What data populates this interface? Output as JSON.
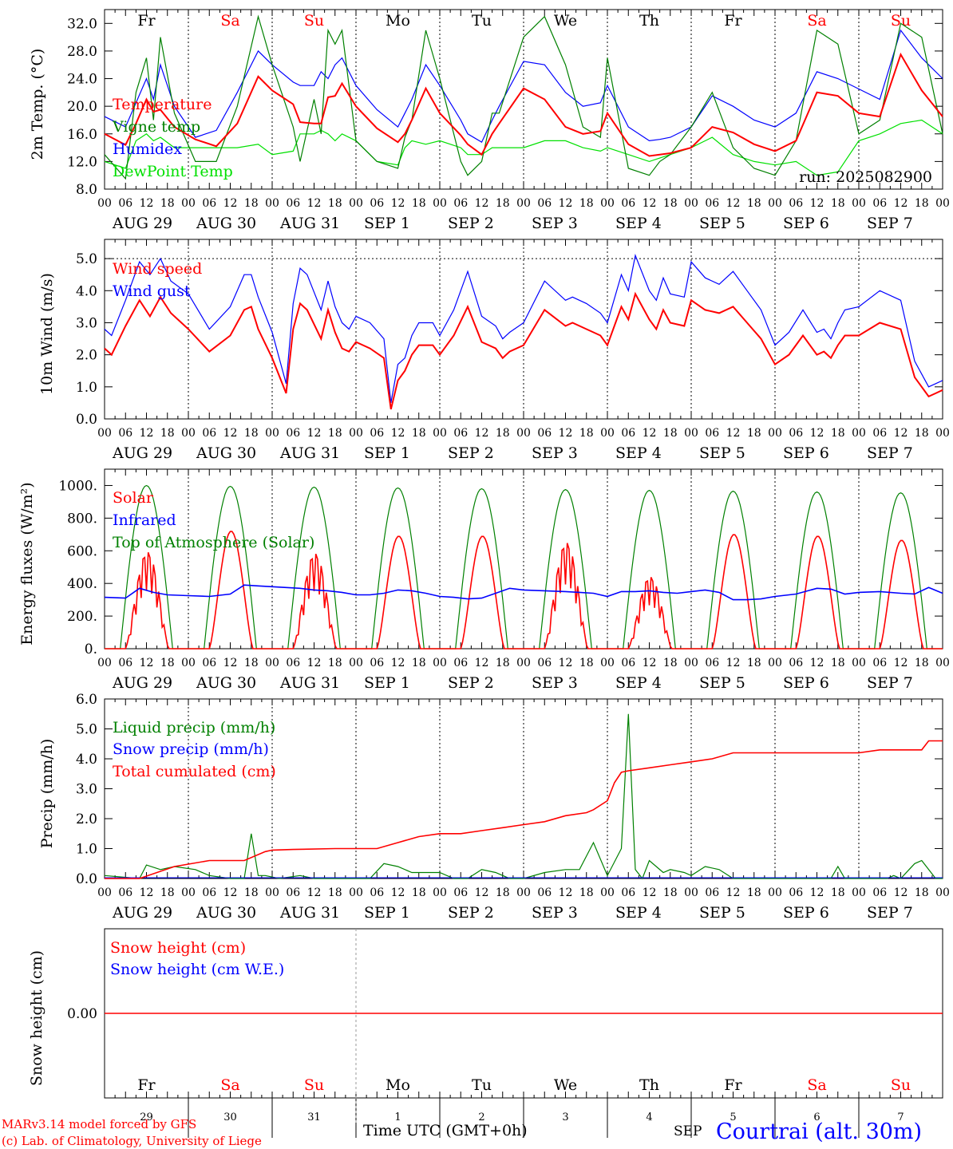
{
  "days": {
    "weekday": [
      "Fr",
      "Sa",
      "Su",
      "Mo",
      "Tu",
      "We",
      "Th",
      "Fr",
      "Sa",
      "Su"
    ],
    "weekend": [
      false,
      true,
      true,
      false,
      false,
      false,
      false,
      false,
      true,
      true
    ],
    "dates": [
      "AUG 29",
      "AUG 30",
      "AUG 31",
      "SEP  1",
      "SEP  2",
      "SEP  3",
      "SEP  4",
      "SEP  5",
      "SEP  6",
      "SEP  7"
    ],
    "day_numbers": [
      "29",
      "30",
      "31",
      "1",
      "2",
      "3",
      "4",
      "5",
      "6",
      "7"
    ],
    "hour_ticks": [
      "00",
      "06",
      "12",
      "18"
    ],
    "final_hour": "00"
  },
  "colors": {
    "red": "#ff0000",
    "blue": "#0000ff",
    "green": "#008000",
    "lightgreen": "#00e000",
    "black": "#000000",
    "gray": "#555555"
  },
  "footer": {
    "credit_line1": "MARv3.14 model forced by GFS",
    "credit_line2": "(c) Lab. of Climatology, University of Liege",
    "time_axis_label": "Time UTC (GMT+0h)",
    "month": "SEP",
    "station": "Courtrai (alt. 30m)"
  },
  "chart_data": [
    {
      "type": "line",
      "ylabel": "2m Temp. (°C)",
      "ylim": [
        8,
        34
      ],
      "yticks": [
        "8.0",
        "12.0",
        "16.0",
        "20.0",
        "24.0",
        "28.0",
        "32.0"
      ],
      "annotation": "run: 2025082900",
      "hours": [
        0,
        6,
        9,
        12,
        14,
        16,
        20,
        26,
        32,
        38,
        44,
        48,
        54,
        56,
        60,
        62,
        64,
        66,
        68,
        72,
        78,
        84,
        86,
        88,
        92,
        96,
        102,
        104,
        108,
        111,
        113,
        120,
        126,
        132,
        137,
        142,
        144,
        150,
        156,
        159,
        162,
        168,
        174,
        180,
        186,
        192,
        198,
        204,
        210,
        216,
        222,
        228,
        234,
        240
      ],
      "series": [
        {
          "name": "Temperature",
          "color_key": "red",
          "values": [
            16,
            14.4,
            17.5,
            21,
            19.2,
            19.5,
            17,
            15.2,
            14.2,
            17.5,
            24.3,
            22.3,
            20.3,
            17.7,
            17.5,
            17.5,
            21.3,
            21.5,
            23.3,
            20,
            16.8,
            14.8,
            16,
            18,
            22.6,
            19,
            15.8,
            14.5,
            13,
            16,
            17.5,
            22.6,
            21,
            17,
            16,
            16.4,
            19,
            14.5,
            12.8,
            13,
            13.2,
            14,
            17,
            16.2,
            14.5,
            13.5,
            15,
            22,
            21.5,
            19,
            18.5,
            27.5,
            22.3,
            18.5
          ]
        },
        {
          "name": "Vigne temp",
          "color_key": "green",
          "values": [
            13,
            9.5,
            22,
            27,
            18,
            30,
            19,
            12,
            12,
            20,
            33,
            26,
            17,
            12,
            21,
            16,
            31,
            29,
            31,
            15,
            12,
            11,
            15.5,
            18,
            31,
            24,
            12,
            10,
            12,
            19,
            19,
            30,
            33,
            26,
            17,
            15.5,
            27,
            11,
            10,
            12,
            13,
            17,
            22,
            14,
            11,
            10,
            15,
            31,
            29,
            16,
            18,
            32,
            30,
            16
          ]
        },
        {
          "name": "Humidex",
          "color_key": "blue",
          "values": [
            18.5,
            17,
            20.5,
            24,
            21,
            26,
            20,
            15.5,
            16.5,
            22,
            28,
            26,
            23.5,
            23,
            23,
            25,
            24,
            26,
            27,
            23,
            19.5,
            17,
            19,
            21,
            26,
            23,
            18,
            16,
            14.8,
            18,
            20,
            26.5,
            26,
            22,
            20,
            20.5,
            23,
            17,
            15,
            15.2,
            15.5,
            17,
            21.5,
            20,
            18,
            17,
            19,
            25,
            24,
            22.5,
            21,
            31,
            27,
            24
          ]
        },
        {
          "name": "DewPoint Temp",
          "color_key": "lightgreen",
          "values": [
            12,
            11,
            15,
            16,
            15,
            15.5,
            14,
            14,
            14,
            14,
            14.5,
            13,
            13.5,
            16,
            16,
            16.5,
            16,
            15,
            16,
            15,
            12,
            11.5,
            14,
            15,
            14.5,
            15,
            14,
            13,
            13,
            14,
            14,
            14,
            15,
            15,
            14,
            13.5,
            14,
            13,
            12,
            12.5,
            13,
            14,
            15.5,
            13,
            12,
            11.5,
            12,
            10,
            10.5,
            15,
            16,
            17.5,
            18,
            16
          ]
        }
      ]
    },
    {
      "type": "line",
      "ylabel": "10m Wind (m/s)",
      "ylim": [
        0,
        5.6
      ],
      "yticks": [
        "0.0",
        "1.0",
        "2.0",
        "3.0",
        "4.0",
        "5.0"
      ],
      "hours": [
        0,
        2,
        6,
        10,
        13,
        16,
        19,
        24,
        30,
        36,
        40,
        42,
        44,
        48,
        52,
        54,
        56,
        58,
        62,
        64,
        66,
        68,
        70,
        72,
        76,
        80,
        82,
        84,
        86,
        88,
        90,
        94,
        96,
        100,
        104,
        108,
        112,
        114,
        116,
        120,
        126,
        132,
        134,
        138,
        142,
        144,
        148,
        150,
        152,
        156,
        158,
        160,
        162,
        166,
        168,
        172,
        176,
        180,
        184,
        188,
        192,
        196,
        200,
        204,
        206,
        208,
        210,
        212,
        216,
        222,
        228,
        232,
        236,
        238,
        240
      ],
      "series": [
        {
          "name": "Wind speed",
          "color_key": "red",
          "values": [
            2.2,
            2.0,
            2.9,
            3.7,
            3.2,
            3.8,
            3.3,
            2.8,
            2.1,
            2.6,
            3.4,
            3.5,
            2.8,
            1.9,
            0.8,
            2.8,
            3.6,
            3.4,
            2.5,
            3.4,
            2.7,
            2.2,
            2.1,
            2.4,
            2.2,
            1.9,
            0.3,
            1.2,
            1.5,
            2.0,
            2.3,
            2.3,
            2.0,
            2.6,
            3.5,
            2.4,
            2.2,
            1.9,
            2.1,
            2.3,
            3.4,
            2.9,
            3.0,
            2.8,
            2.6,
            2.3,
            3.5,
            3.1,
            3.9,
            3.1,
            2.8,
            3.4,
            3.0,
            2.9,
            3.7,
            3.4,
            3.3,
            3.5,
            3.0,
            2.5,
            1.7,
            2.0,
            2.6,
            2.0,
            2.1,
            1.9,
            2.3,
            2.6,
            2.6,
            3.0,
            2.8,
            1.3,
            0.7,
            0.8,
            0.9
          ]
        },
        {
          "name": "Wind gust",
          "color_key": "blue",
          "values": [
            2.8,
            2.6,
            3.7,
            4.9,
            4.5,
            5.0,
            4.3,
            3.9,
            2.8,
            3.5,
            4.5,
            4.5,
            3.8,
            2.7,
            1.1,
            3.6,
            4.7,
            4.5,
            3.4,
            4.3,
            3.5,
            3.0,
            2.8,
            3.2,
            3.0,
            2.5,
            0.5,
            1.7,
            1.9,
            2.6,
            3.0,
            3.0,
            2.6,
            3.4,
            4.6,
            3.2,
            2.9,
            2.5,
            2.7,
            3.0,
            4.3,
            3.7,
            3.8,
            3.6,
            3.3,
            3.0,
            4.5,
            4.0,
            5.1,
            4.0,
            3.7,
            4.4,
            3.9,
            3.8,
            4.9,
            4.4,
            4.2,
            4.6,
            4.0,
            3.4,
            2.3,
            2.7,
            3.4,
            2.7,
            2.8,
            2.5,
            3.0,
            3.4,
            3.5,
            4.0,
            3.7,
            1.8,
            1.0,
            1.1,
            1.2
          ]
        }
      ],
      "reference_line": 5.0
    },
    {
      "type": "line",
      "ylabel": "Energy fluxes (W/m²)",
      "ylim": [
        0,
        1100
      ],
      "yticks": [
        "0.",
        "200.",
        "400.",
        "600.",
        "800.",
        "1000."
      ],
      "toa_peaks": [
        1000,
        995,
        990,
        985,
        980,
        975,
        970,
        965,
        960,
        955
      ],
      "solar_peaks": [
        620,
        720,
        610,
        690,
        690,
        680,
        460,
        700,
        690,
        665
      ],
      "infrared": {
        "hours": [
          0,
          6,
          10,
          14,
          18,
          24,
          30,
          36,
          40,
          44,
          48,
          52,
          56,
          60,
          64,
          68,
          72,
          76,
          80,
          84,
          88,
          92,
          96,
          100,
          104,
          108,
          112,
          116,
          120,
          126,
          132,
          136,
          140,
          144,
          148,
          152,
          156,
          160,
          164,
          168,
          172,
          176,
          180,
          184,
          188,
          192,
          198,
          204,
          208,
          212,
          216,
          222,
          228,
          232,
          236,
          240
        ],
        "values": [
          315,
          310,
          370,
          345,
          330,
          325,
          320,
          335,
          390,
          385,
          380,
          375,
          370,
          360,
          355,
          345,
          330,
          330,
          340,
          360,
          355,
          340,
          320,
          315,
          305,
          310,
          340,
          370,
          360,
          355,
          350,
          345,
          340,
          320,
          350,
          350,
          355,
          345,
          340,
          350,
          360,
          345,
          300,
          300,
          305,
          320,
          335,
          370,
          365,
          335,
          345,
          350,
          340,
          335,
          375,
          340
        ]
      },
      "series": [
        {
          "name": "Solar",
          "color_key": "red"
        },
        {
          "name": "Infrared",
          "color_key": "blue"
        },
        {
          "name": "Top of Atmosphere (Solar)",
          "color_key": "green"
        }
      ]
    },
    {
      "type": "line",
      "ylabel": "Precip (mm/h)",
      "ylim": [
        0,
        6
      ],
      "yticks": [
        "0.0",
        "1.0",
        "2.0",
        "3.0",
        "4.0",
        "5.0",
        "6.0"
      ],
      "liquid": {
        "hours": [
          0,
          10,
          12,
          16,
          20,
          26,
          30,
          36,
          40,
          42,
          44,
          46,
          50,
          56,
          60,
          66,
          72,
          76,
          80,
          84,
          88,
          96,
          100,
          104,
          108,
          112,
          116,
          120,
          126,
          132,
          136,
          140,
          144,
          148,
          150,
          152,
          154,
          156,
          160,
          162,
          166,
          168,
          172,
          176,
          180,
          184,
          188,
          192,
          200,
          206,
          208,
          210,
          212,
          220,
          224,
          226,
          228,
          232,
          234,
          238,
          240
        ],
        "values": [
          0.1,
          0,
          0.45,
          0.3,
          0.4,
          0.3,
          0.1,
          0,
          0,
          1.5,
          0.1,
          0.1,
          0,
          0.1,
          0,
          0,
          0,
          0,
          0.5,
          0.4,
          0.2,
          0.2,
          0,
          0,
          0.3,
          0.2,
          0,
          0,
          0.2,
          0.3,
          0.3,
          1.2,
          0.1,
          1.0,
          5.5,
          0.3,
          0,
          0.6,
          0.2,
          0.3,
          0.2,
          0.1,
          0.4,
          0.3,
          0,
          0,
          0,
          0,
          0,
          0,
          0,
          0.4,
          0,
          0,
          0,
          0.1,
          0,
          0.5,
          0.6,
          0,
          0
        ]
      },
      "cumulated": {
        "hours": [
          0,
          10,
          20,
          30,
          40,
          46,
          48,
          54,
          66,
          78,
          84,
          90,
          96,
          102,
          108,
          114,
          120,
          126,
          132,
          138,
          140,
          144,
          146,
          148,
          150,
          156,
          162,
          168,
          174,
          180,
          192,
          204,
          216,
          222,
          228,
          234,
          236,
          240
        ],
        "values": [
          0,
          0,
          0.4,
          0.6,
          0.6,
          0.9,
          0.95,
          0.97,
          1.0,
          1.0,
          1.2,
          1.4,
          1.5,
          1.5,
          1.6,
          1.7,
          1.8,
          1.9,
          2.1,
          2.2,
          2.3,
          2.6,
          3.2,
          3.55,
          3.6,
          3.7,
          3.8,
          3.9,
          4.0,
          4.2,
          4.2,
          4.2,
          4.2,
          4.3,
          4.3,
          4.3,
          4.6,
          4.6
        ]
      },
      "series": [
        {
          "name": "Liquid precip (mm/h)",
          "color_key": "green"
        },
        {
          "name": "Snow precip (mm/h)",
          "color_key": "blue"
        },
        {
          "name": "Total cumulated (cm)",
          "color_key": "red"
        }
      ]
    },
    {
      "type": "line",
      "ylabel": "Snow height (cm)",
      "yticks": [
        "0.00"
      ],
      "values_constant": 0,
      "series": [
        {
          "name": "Snow height (cm)",
          "color_key": "red"
        },
        {
          "name": "Snow height (cm W.E.)",
          "color_key": "blue"
        }
      ]
    }
  ]
}
